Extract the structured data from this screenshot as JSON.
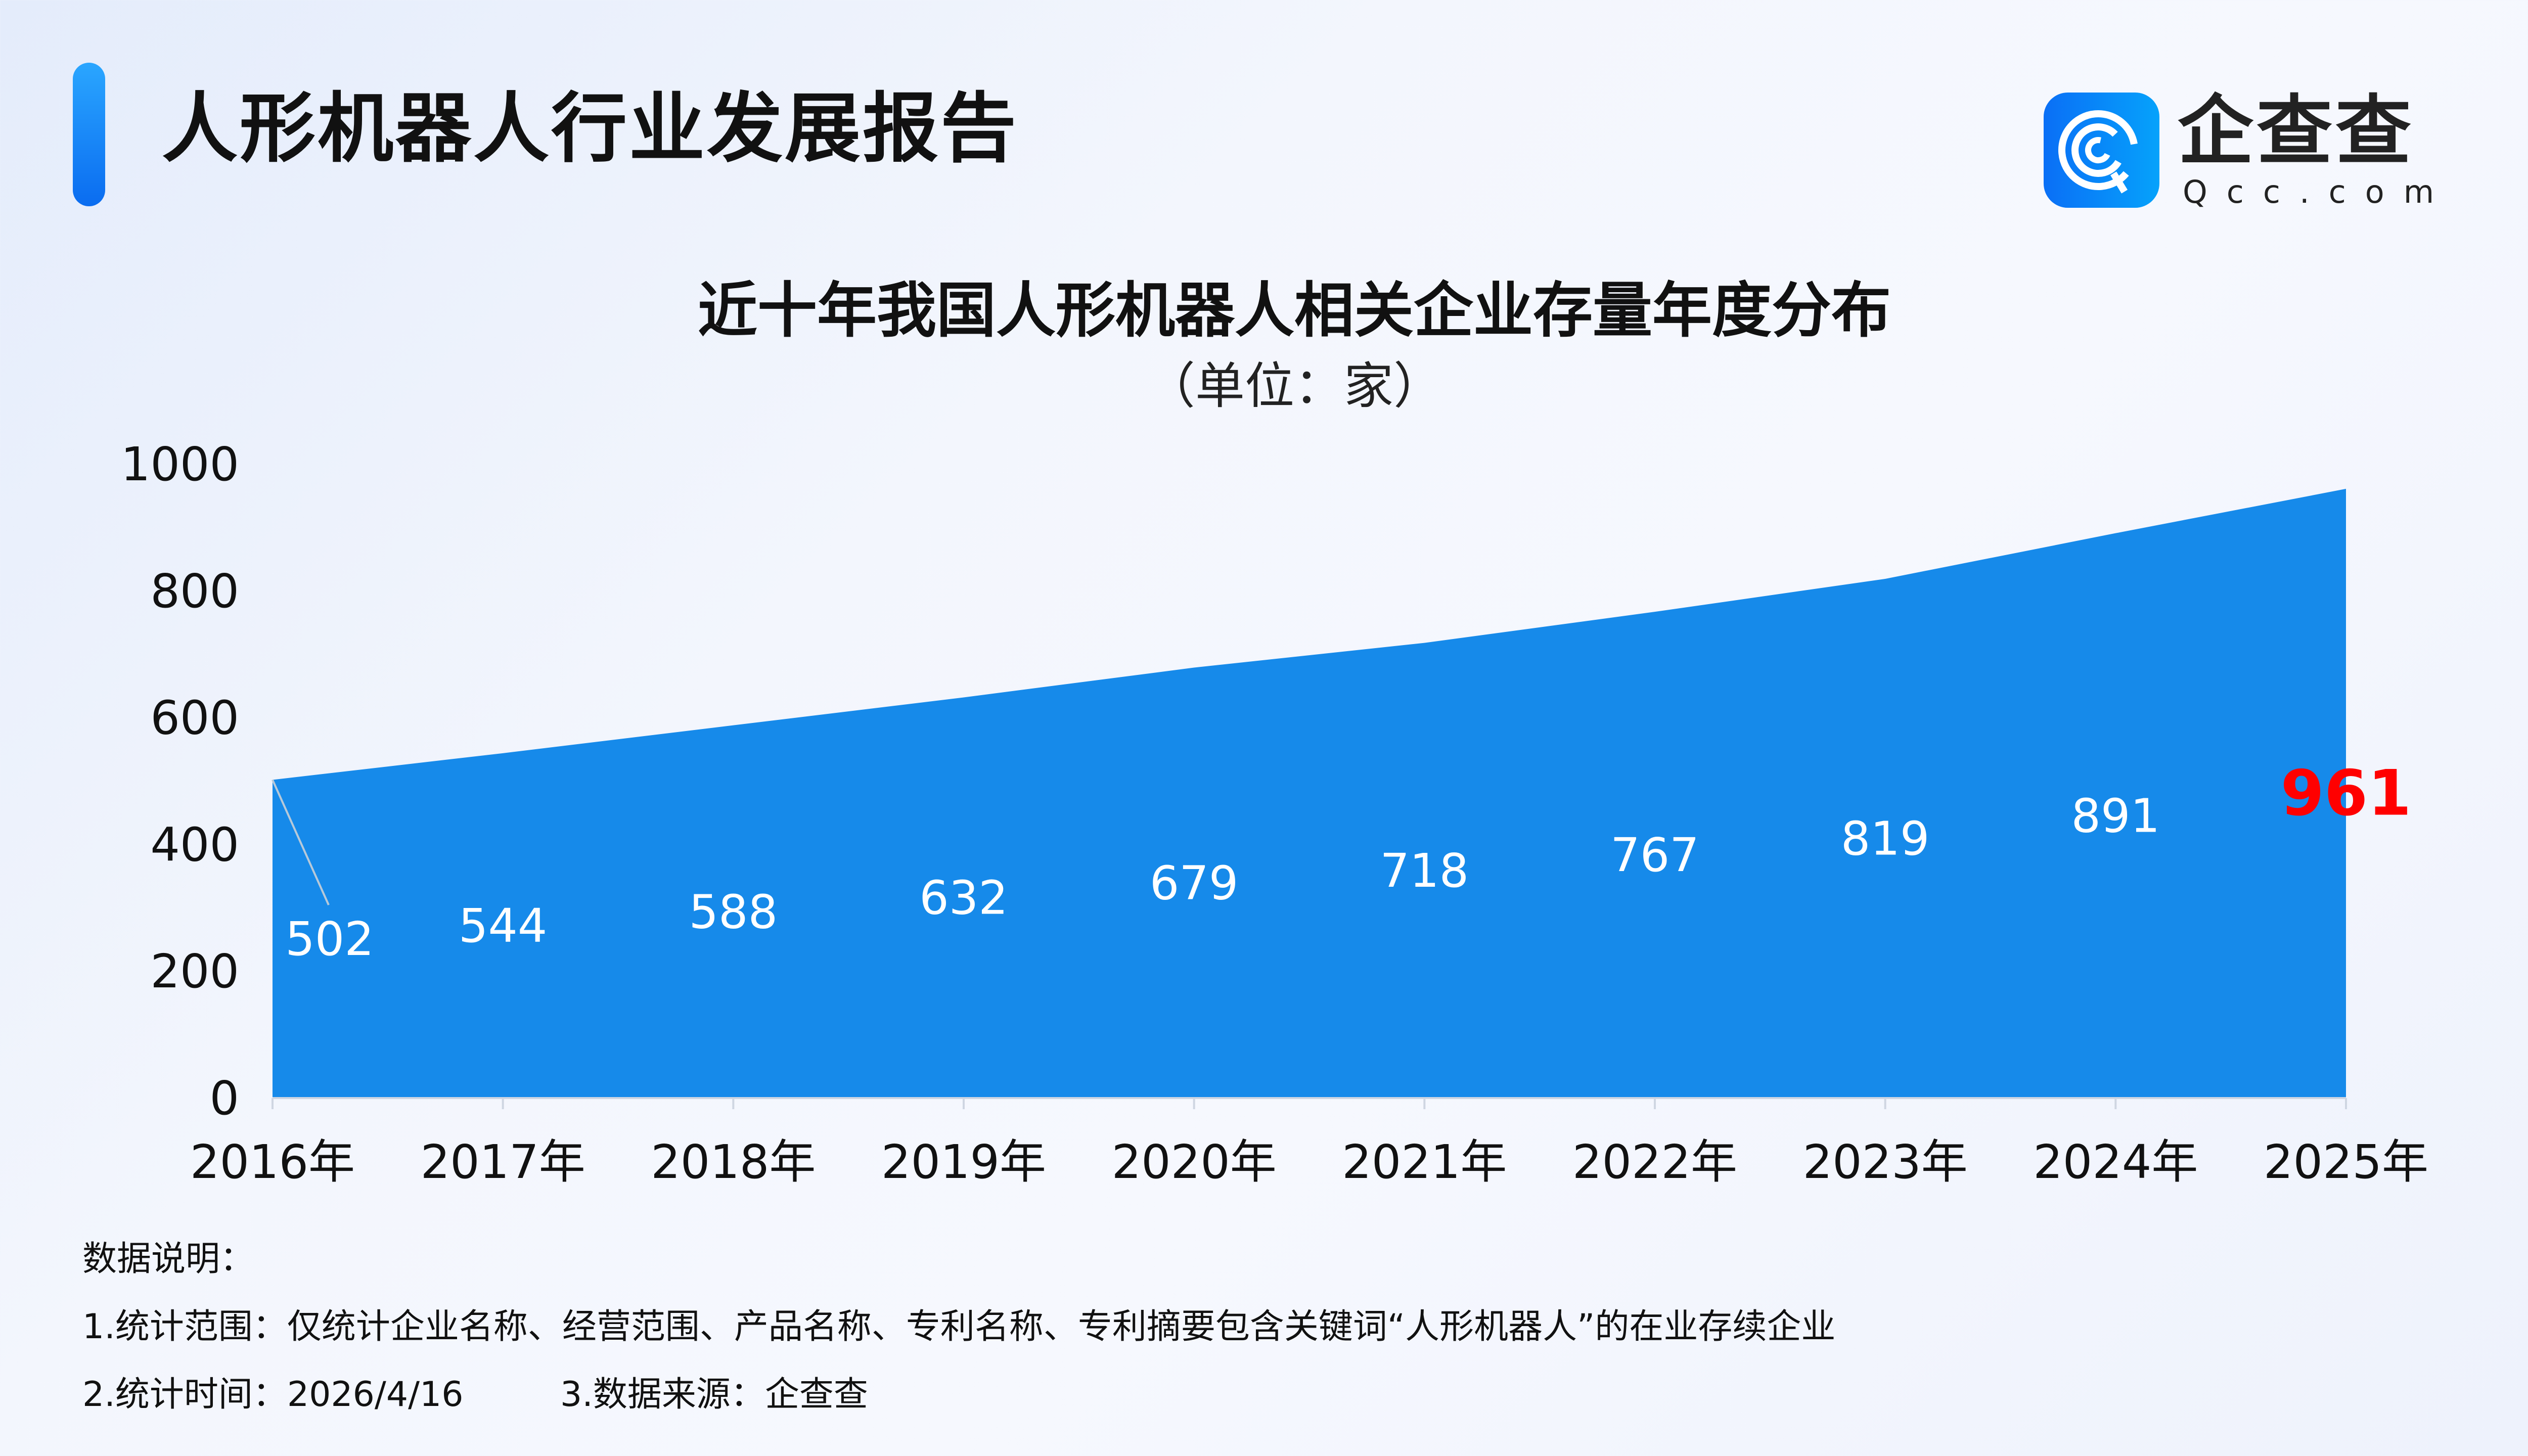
{
  "header": {
    "title": "人形机器人行业发展报告",
    "logo_text": "企查查",
    "logo_sub": "Qcc.com"
  },
  "chart_data": {
    "type": "area",
    "title": "近十年我国人形机器人相关企业存量年度分布",
    "subtitle": "（单位：家）",
    "categories": [
      "2016年",
      "2017年",
      "2018年",
      "2019年",
      "2020年",
      "2021年",
      "2022年",
      "2023年",
      "2024年",
      "2025年"
    ],
    "values": [
      502,
      544,
      588,
      632,
      679,
      718,
      767,
      819,
      891,
      961
    ],
    "ylim": [
      0,
      1000
    ],
    "yticks": [
      0,
      200,
      400,
      600,
      800,
      1000
    ],
    "grid": false,
    "color": "#168aea",
    "label_color": "#ffffff",
    "highlight_color": "#ff0000"
  },
  "notes": {
    "heading": "数据说明：",
    "line1": "1.统计范围：仅统计企业名称、经营范围、产品名称、专利名称、专利摘要包含关键词“人形机器人”的在业存续企业",
    "line2a": "2.统计时间：2026/4/16",
    "line2b": "3.数据来源：企查查"
  }
}
